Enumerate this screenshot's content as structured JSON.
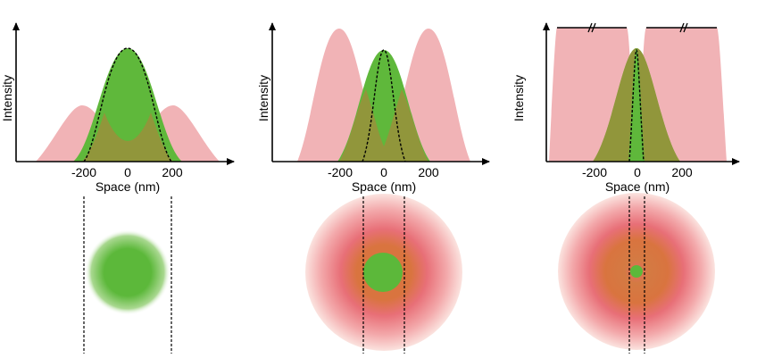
{
  "panels": [
    {
      "id": "conventional",
      "xlabel": "Space (nm)",
      "ylabel": "Intensity",
      "ticks": [
        "-200",
        "0",
        "200"
      ],
      "depletion_profile": "two-side-lobes",
      "excitation_psf_width": "wide",
      "detected_psf_width": "wide",
      "focal_spot": "large green spot, no depletion ring"
    },
    {
      "id": "moderate-depletion",
      "xlabel": "Space (nm)",
      "ylabel": "Intensity",
      "ticks": [
        "-200",
        "0",
        "200"
      ],
      "depletion_profile": "doughnut",
      "excitation_psf_width": "wide",
      "detected_psf_width": "narrower",
      "focal_spot": "medium green spot inside red doughnut"
    },
    {
      "id": "saturated-depletion",
      "xlabel": "Space (nm)",
      "ylabel": "Intensity",
      "ticks": [
        "-200",
        "0",
        "200"
      ],
      "depletion_profile": "saturated-doughnut (axis break marks)",
      "excitation_psf_width": "wide",
      "detected_psf_width": "very narrow",
      "focal_spot": "small green spot inside red doughnut"
    }
  ],
  "colors": {
    "excitation": "#5fb83b",
    "depletion": "#f1b3b6",
    "overlap": "#9a8f3c",
    "spot_green": "#5cb83a",
    "ring_red": "#e8707a",
    "ring_orange": "#d9743f"
  }
}
